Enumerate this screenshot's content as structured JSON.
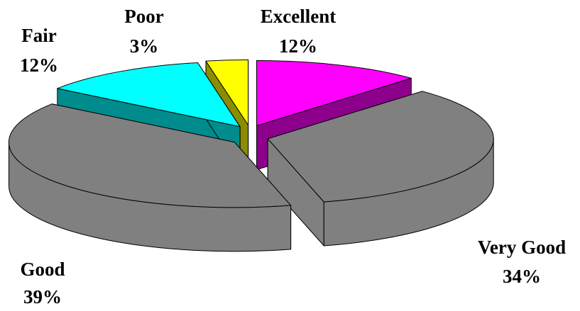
{
  "chart_data": {
    "type": "pie3d",
    "categories": [
      "Excellent",
      "Very Good",
      "Good",
      "Fair",
      "Poor"
    ],
    "values": [
      12,
      34,
      39,
      12,
      3
    ],
    "value_labels": [
      "12%",
      "34%",
      "39%",
      "12%",
      "3%"
    ],
    "colors": [
      "#ff00ff",
      "#808080",
      "#808080",
      "#00ffff",
      "#ffff00"
    ]
  }
}
